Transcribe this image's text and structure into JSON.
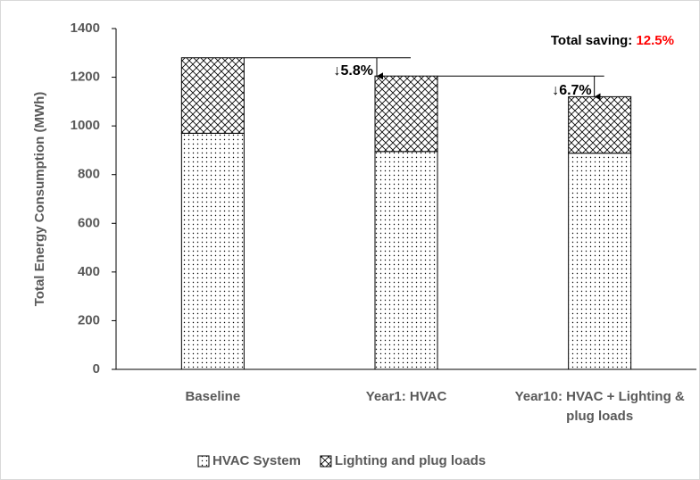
{
  "chart_data": {
    "type": "stacked_bar",
    "y_label": "Total Energy Consumption (MWh)",
    "categories": [
      "Baseline",
      "Year1: HVAC",
      "Year10: HVAC + Lighting & plug loads"
    ],
    "series": [
      {
        "name": "HVAC System",
        "color": "#000000",
        "pattern": "dots",
        "values": [
          970,
          895,
          888
        ]
      },
      {
        "name": "Lighting and plug loads",
        "color": "#000000",
        "pattern": "crosshatch",
        "values": [
          310,
          310,
          232
        ]
      }
    ],
    "ylim": [
      0,
      1400
    ],
    "yticks": [
      0,
      200,
      400,
      600,
      800,
      1000,
      1200,
      1400
    ],
    "annotations": [
      "↓5.8%",
      "↓6.7%"
    ],
    "total_saving": {
      "label": "Total saving: ",
      "value": "12.5%",
      "color": "#ff0000"
    },
    "legend": "bottom"
  }
}
